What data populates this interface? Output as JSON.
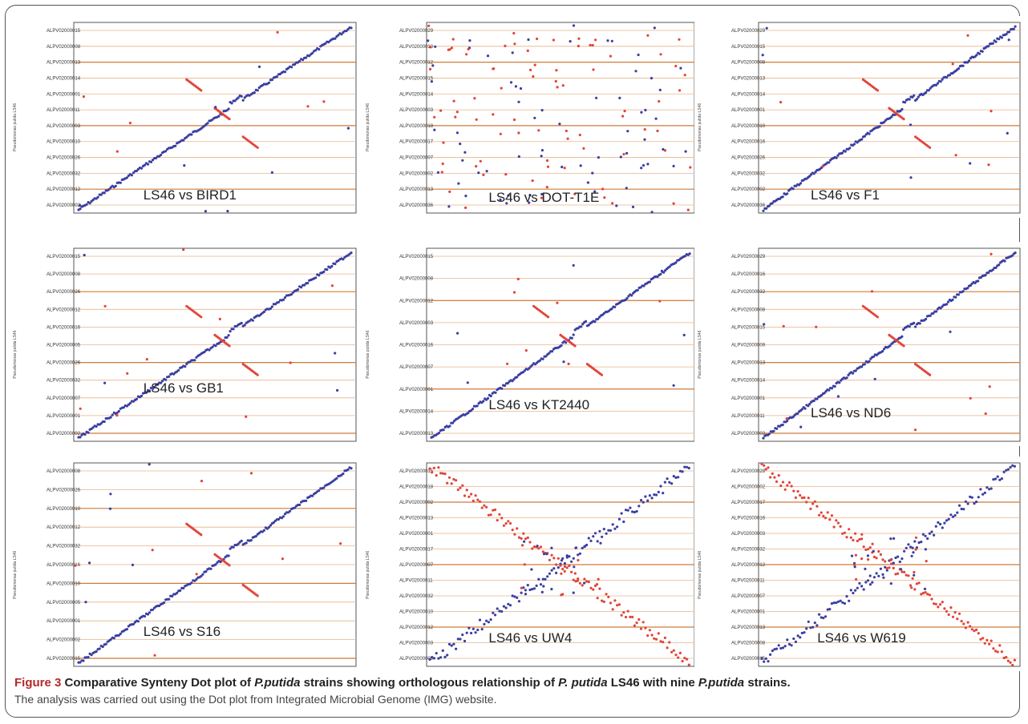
{
  "figure": {
    "caption_label": "Figure 3",
    "caption_parts": [
      {
        "t": "Comparative Synteny Dot plot of ",
        "i": false
      },
      {
        "t": "P.putida",
        "i": true
      },
      {
        "t": " strains showing orthologous relationship of ",
        "i": false
      },
      {
        "t": "P. putida",
        "i": true
      },
      {
        "t": " LS46 with nine ",
        "i": false
      },
      {
        "t": "P.putida",
        "i": true
      },
      {
        "t": " strains.",
        "i": false
      }
    ],
    "caption_line2": "The analysis was carried out using the Dot plot from Integrated Microbial Genome (IMG) website."
  },
  "colors": {
    "forward": "#3a3fa0",
    "reverse": "#e0453a",
    "gridline": "#e8b48a",
    "strong_gridline": "#cf7a3a",
    "axis": "#555555"
  },
  "y_axis_title": "Pseudomonas putida LS46",
  "panels": [
    {
      "label": "LS46 vs BIRD1",
      "pattern": "diag",
      "y_labels": [
        "ALPV02000015",
        "ALPV02000008",
        "ALPV02000013",
        "ALPV02000014",
        "ALPV02000001",
        "ALPV02000011",
        "ALPV02000003",
        "ALPV02000010",
        "ALPV02000026",
        "ALPV02000032",
        "ALPV02000012",
        "ALPV02000002"
      ]
    },
    {
      "label": "LS46 vs DOT-T1E",
      "pattern": "scatter",
      "y_labels": [
        "ALPV02000029",
        "ALPV02000010",
        "ALPV02000012",
        "ALPV02000015",
        "ALPV02000014",
        "ALPV02000003",
        "ALPV02000018",
        "ALPV02000017",
        "ALPV02000007",
        "ALPV02000002",
        "ALPV02000013",
        "ALPV02000036"
      ]
    },
    {
      "label": "LS46 vs F1",
      "pattern": "diag",
      "y_labels": [
        "ALPV02000029",
        "ALPV02000015",
        "ALPV02000008",
        "ALPV02000013",
        "ALPV02000014",
        "ALPV02000001",
        "ALPV02000010",
        "ALPV02000016",
        "ALPV02000026",
        "ALPV02000032",
        "ALPV02000002",
        "ALPV02000036"
      ]
    },
    {
      "label": "LS46 vs GB1",
      "pattern": "diag",
      "y_labels": [
        "ALPV02000015",
        "ALPV02000008",
        "ALPV02000026",
        "ALPV02000012",
        "ALPV02000016",
        "ALPV02000005",
        "ALPV02000026",
        "ALPV02000032",
        "ALPV02000007",
        "ALPV02000001",
        "ALPV02000002"
      ]
    },
    {
      "label": "LS46 vs KT2440",
      "pattern": "diag",
      "y_labels": [
        "ALPV02000015",
        "ALPV02000008",
        "ALPV02000012",
        "ALPV02000003",
        "ALPV02000016",
        "ALPV02000007",
        "ALPV02000001",
        "ALPV02000014",
        "ALPV02000013"
      ]
    },
    {
      "label": "LS46 vs ND6",
      "pattern": "diag",
      "y_labels": [
        "ALPV02000029",
        "ALPV02000016",
        "ALPV02000032",
        "ALPV02000008",
        "ALPV02000015",
        "ALPV02000009",
        "ALPV02000013",
        "ALPV02000014",
        "ALPV02000001",
        "ALPV02000011",
        "ALPV02000003"
      ]
    },
    {
      "label": "LS46 vs S16",
      "pattern": "diag",
      "y_labels": [
        "ALPV02000008",
        "ALPV02000026",
        "ALPV02000010",
        "ALPV02000012",
        "ALPV02000032",
        "ALPV02000016",
        "ALPV02000010",
        "ALPV02000005",
        "ALPV02000001",
        "ALPV02000002",
        "ALPV02000015"
      ]
    },
    {
      "label": "LS46 vs UW4",
      "pattern": "cross",
      "y_labels": [
        "ALPV02000015",
        "ALPV02000018",
        "ALPV02000002",
        "ALPV02000013",
        "ALPV02000001",
        "ALPV02000017",
        "ALPV02000007",
        "ALPV02000011",
        "ALPV02000032",
        "ALPV02000010",
        "ALPV02000012",
        "ALPV02000003",
        "ALPV02000009"
      ]
    },
    {
      "label": "LS46 vs W619",
      "pattern": "cross",
      "y_labels": [
        "ALPV02000028",
        "ALPV02000002",
        "ALPV02000017",
        "ALPV02000016",
        "ALPV02000003",
        "ALPV02000032",
        "ALPV02000012",
        "ALPV02000011",
        "ALPV02000007",
        "ALPV02000001",
        "ALPV02000013",
        "ALPV02000008",
        "ALPV02000015"
      ]
    }
  ]
}
